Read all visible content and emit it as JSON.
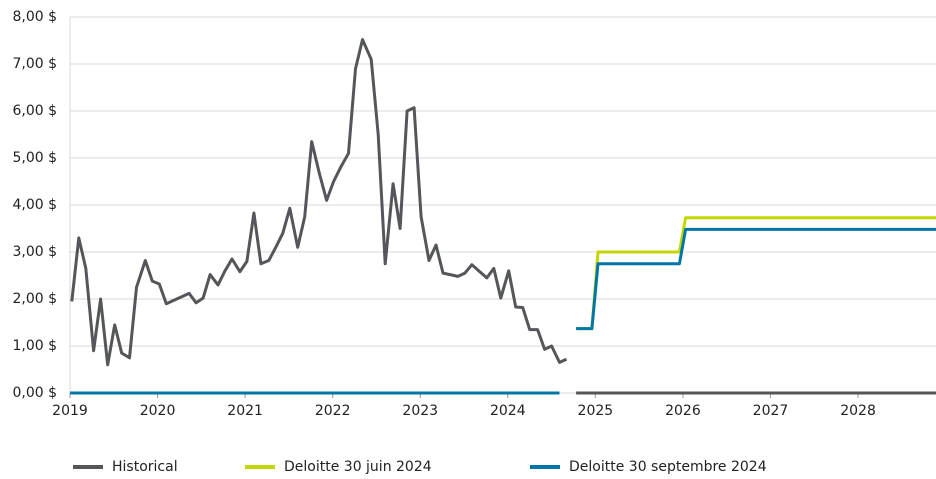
{
  "chart_data": {
    "type": "line",
    "xlim": [
      2019,
      2028.89
    ],
    "xticks": [
      2019,
      2020,
      2021,
      2022,
      2023,
      2024,
      2025,
      2026,
      2027,
      2028
    ],
    "ylim": [
      0,
      8
    ],
    "yticks": [
      {
        "value": 0,
        "label": "0,00 $"
      },
      {
        "value": 1,
        "label": "1,00 $"
      },
      {
        "value": 2,
        "label": "2,00 $"
      },
      {
        "value": 3,
        "label": "3,00 $"
      },
      {
        "value": 4,
        "label": "4,00 $"
      },
      {
        "value": 5,
        "label": "5,00 $"
      },
      {
        "value": 6,
        "label": "6,00 $"
      },
      {
        "value": 7,
        "label": "7,00 $"
      },
      {
        "value": 8,
        "label": "8,00 $"
      }
    ],
    "grid": true,
    "legend": "bottom",
    "series": [
      {
        "name": "Historical",
        "color": "#54565a",
        "x": [
          2019.02,
          2019.1,
          2019.18,
          2019.27,
          2019.35,
          2019.43,
          2019.51,
          2019.59,
          2019.68,
          2019.76,
          2019.86,
          2019.94,
          2020.02,
          2020.1,
          2020.36,
          2020.44,
          2020.52,
          2020.6,
          2020.69,
          2020.77,
          2020.85,
          2020.94,
          2021.02,
          2021.1,
          2021.18,
          2021.27,
          2021.35,
          2021.43,
          2021.51,
          2021.6,
          2021.68,
          2021.76,
          2021.85,
          2021.93,
          2022.01,
          2022.09,
          2022.18,
          2022.26,
          2022.34,
          2022.44,
          2022.52,
          2022.6,
          2022.69,
          2022.77,
          2022.85,
          2022.93,
          2023.01,
          2023.1,
          2023.18,
          2023.26,
          2023.34,
          2023.43,
          2023.51,
          2023.59,
          2023.68,
          2023.76,
          2023.84,
          2023.92,
          2024.01,
          2024.09,
          2024.17,
          2024.25,
          2024.34,
          2024.42,
          2024.5,
          2024.59,
          2024.67,
          2024.72,
          2024.78,
          2028.89
        ],
        "values": [
          1.95,
          3.3,
          2.65,
          0.9,
          2.0,
          0.6,
          1.45,
          0.85,
          0.75,
          2.25,
          2.82,
          2.38,
          2.32,
          1.9,
          2.12,
          1.92,
          2.02,
          2.52,
          2.3,
          2.6,
          2.85,
          2.58,
          2.8,
          3.83,
          2.75,
          2.82,
          3.1,
          3.4,
          3.93,
          3.1,
          3.75,
          5.35,
          4.65,
          4.1,
          4.5,
          4.8,
          5.1,
          6.9,
          7.52,
          7.1,
          5.5,
          2.75,
          4.45,
          3.5,
          6.0,
          6.07,
          3.75,
          2.82,
          3.15,
          2.55,
          2.52,
          2.48,
          2.55,
          2.73,
          2.58,
          2.45,
          2.65,
          2.02,
          2.6,
          1.83,
          1.82,
          1.35,
          1.35,
          0.93,
          1.0,
          0.65,
          0.72,
          null,
          0,
          0
        ]
      },
      {
        "name": "Deloitte 30 juin 2024",
        "color": "#c4d600",
        "x": [
          2024.78,
          2024.96,
          2025.03,
          2025.96,
          2026.03,
          2028.89
        ],
        "values": [
          1.37,
          1.37,
          3.0,
          3.0,
          3.73,
          3.73
        ]
      },
      {
        "name": "Deloitte 30 septembre 2024",
        "color": "#0076a8",
        "x": [
          2019.0,
          2024.59,
          2024.7,
          2024.78,
          2024.96,
          2025.03,
          2025.96,
          2026.03,
          2028.89
        ],
        "values": [
          0,
          0,
          null,
          1.37,
          1.37,
          2.75,
          2.75,
          3.48,
          3.48
        ]
      }
    ]
  }
}
